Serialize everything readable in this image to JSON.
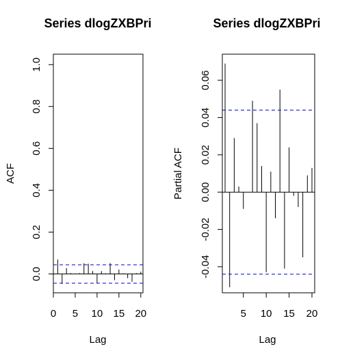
{
  "chart_data": [
    {
      "type": "bar",
      "title": "Series  dlogZXBPri",
      "xlabel": "Lag",
      "ylabel": "ACF",
      "xlim": [
        0,
        20.5
      ],
      "ylim": [
        -0.09,
        1.05
      ],
      "xticks": [
        0,
        5,
        10,
        15,
        20
      ],
      "xticklabels": [
        "0",
        "5",
        "10",
        "15",
        "20"
      ],
      "yticks": [
        0.0,
        0.2,
        0.4,
        0.6,
        0.8,
        1.0
      ],
      "yticklabels": [
        "0.0",
        "0.2",
        "0.4",
        "0.6",
        "0.8",
        "1.0"
      ],
      "ci": [
        0.044,
        -0.044
      ],
      "x": [
        0,
        1,
        2,
        3,
        4,
        5,
        6,
        7,
        8,
        9,
        10,
        11,
        12,
        13,
        14,
        15,
        16,
        17,
        18,
        19,
        20
      ],
      "values": [
        1.0,
        0.069,
        -0.047,
        0.028,
        0.004,
        0.002,
        0.004,
        0.051,
        0.049,
        0.014,
        -0.043,
        0.014,
        0.003,
        0.052,
        -0.03,
        0.021,
        0.003,
        -0.02,
        -0.037,
        0.004,
        0.011
      ]
    },
    {
      "type": "bar",
      "title": "Series  dlogZXBPri",
      "xlabel": "Lag",
      "ylabel": "Partial ACF",
      "xlim": [
        0.4,
        20.6
      ],
      "ylim": [
        -0.054,
        0.074
      ],
      "xticks": [
        5,
        10,
        15,
        20
      ],
      "xticklabels": [
        "5",
        "10",
        "15",
        "20"
      ],
      "yticks": [
        -0.04,
        -0.02,
        0.0,
        0.02,
        0.04,
        0.06
      ],
      "yticklabels": [
        "-0.04",
        "-0.02",
        "0.00",
        "0.02",
        "0.04",
        "0.06"
      ],
      "ci": [
        0.044,
        -0.044
      ],
      "x": [
        1,
        2,
        3,
        4,
        5,
        6,
        7,
        8,
        9,
        10,
        11,
        12,
        13,
        14,
        15,
        16,
        17,
        18,
        19,
        20
      ],
      "values": [
        0.069,
        -0.051,
        0.029,
        0.003,
        -0.009,
        0.0,
        0.049,
        0.037,
        0.014,
        -0.043,
        0.011,
        -0.014,
        0.055,
        -0.041,
        0.024,
        -0.002,
        -0.008,
        -0.035,
        0.009,
        0.013
      ]
    }
  ]
}
